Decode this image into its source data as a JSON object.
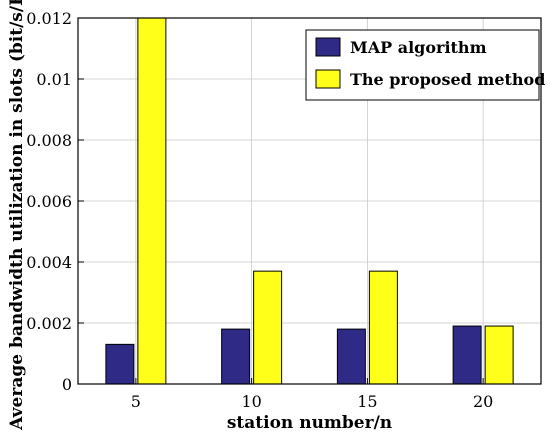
{
  "chart_data": {
    "type": "bar",
    "categories": [
      "5",
      "10",
      "15",
      "20"
    ],
    "series": [
      {
        "name": "MAP algorithm",
        "values": [
          0.0013,
          0.0018,
          0.0018,
          0.0019
        ],
        "color": "#2e2a85"
      },
      {
        "name": "The proposed method",
        "values": [
          0.012,
          0.0037,
          0.0037,
          0.0019
        ],
        "color": "#ffff1a"
      }
    ],
    "title": "",
    "xlabel": "station number/n",
    "ylabel": "Average bandwidth utilization in slots (bit/s/Hz)",
    "ylim": [
      0,
      0.012
    ],
    "yticks": [
      "0",
      "0.002",
      "0.004",
      "0.006",
      "0.008",
      "0.01",
      "0.012"
    ],
    "grid": true,
    "legend_position": "top-right"
  }
}
